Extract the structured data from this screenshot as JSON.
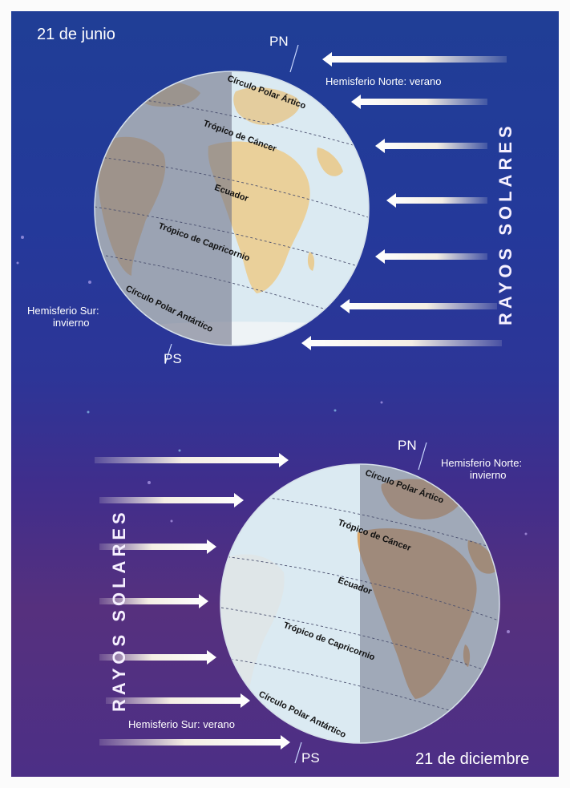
{
  "colors": {
    "sky_top": "#203e96",
    "sky_bottom": "#56307e",
    "ray": "#f4eee4",
    "ocean_light": "#dbeaf2",
    "night_shade": "#7a7e92",
    "land": "#e7c892"
  },
  "top": {
    "date": "21 de junio",
    "north_pole": "PN",
    "south_pole": "PS",
    "north_hemisphere": "Hemisferio Norte: verano",
    "south_hemisphere_line1": "Hemisferio Sur:",
    "south_hemisphere_line2": "invierno",
    "rays": "RAYOS SOLARES",
    "globe_lines": {
      "arctic": "Círculo Polar Ártico",
      "cancer": "Trópico de Cáncer",
      "equator": "Ecuador",
      "capricorn": "Trópico de Capricornio",
      "antarctic": "Círculo Polar Antártico"
    }
  },
  "bottom": {
    "date": "21 de diciembre",
    "north_pole": "PN",
    "south_pole": "PS",
    "north_hemisphere_line1": "Hemisferio Norte:",
    "north_hemisphere_line2": "invierno",
    "south_hemisphere": "Hemisferio Sur: verano",
    "rays": "RAYOS SOLARES",
    "globe_lines": {
      "arctic": "Círculo Polar Ártico",
      "cancer": "Trópico de Cáncer",
      "equator": "Ecuador",
      "capricorn": "Trópico de Capricornio",
      "antarctic": "Círculo Polar Antártico"
    }
  }
}
